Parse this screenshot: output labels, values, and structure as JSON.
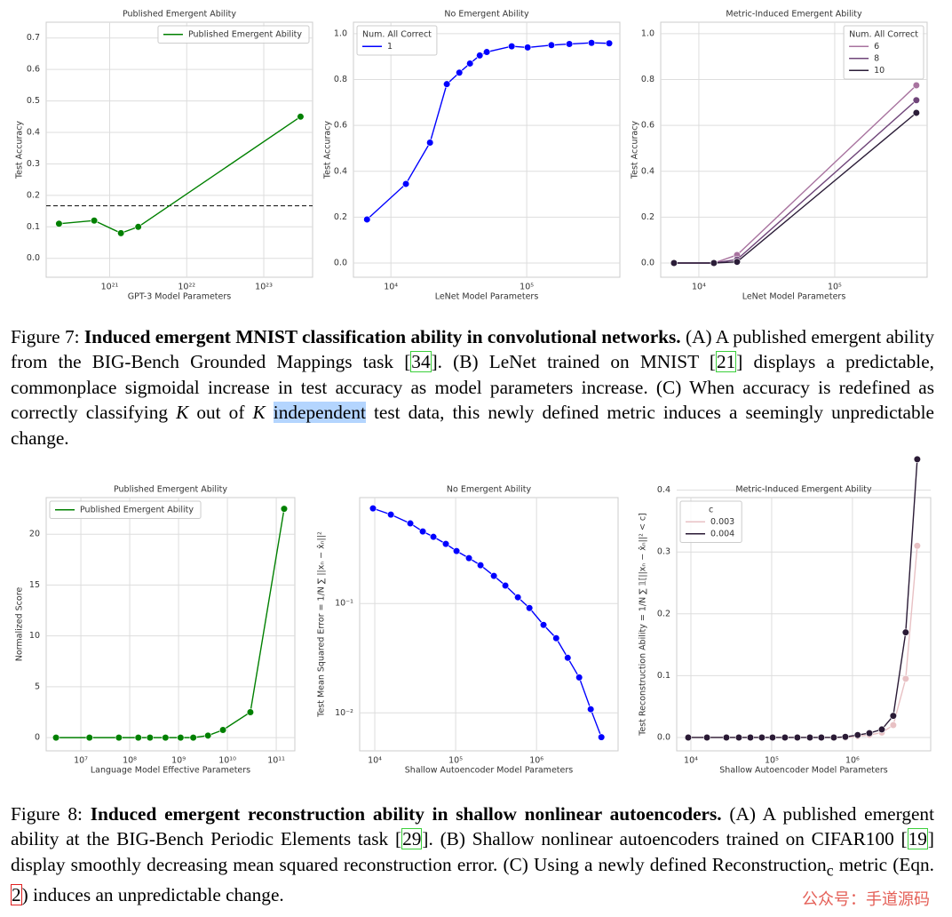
{
  "chart_data": [
    {
      "type": "line",
      "title": "Published Emergent Ability",
      "xlabel": "GPT-3 Model Parameters",
      "ylabel": "Test Accuracy",
      "xscale": "log",
      "xlim": [
        1.5e+20,
        4.3e+23
      ],
      "ylim": [
        -0.06,
        0.75
      ],
      "xticks": [
        {
          "value": 1e+21,
          "label": "10²¹"
        },
        {
          "value": 1e+22,
          "label": "10²²"
        },
        {
          "value": 1e+23,
          "label": "10²³"
        }
      ],
      "yticks": [
        {
          "value": 0,
          "label": "0.0"
        },
        0.1,
        0.2,
        0.3,
        0.4,
        0.5,
        0.6,
        0.7
      ],
      "x": [
        2.2e+20,
        6.3e+20,
        1.4e+21,
        2.35e+21,
        3e+23
      ],
      "series": [
        {
          "name": "Published Emergent Ability",
          "color": "#008000",
          "values": [
            0.11,
            0.12,
            0.08,
            0.1,
            0.45
          ]
        }
      ],
      "hline": 0.167,
      "hline_style": "dashed",
      "grid": true,
      "legend": "upper right"
    },
    {
      "type": "line",
      "title": "No Emergent Ability",
      "xlabel": "LeNet Model Parameters",
      "ylabel": "Test Accuracy",
      "xscale": "log",
      "xlim": [
        5300,
        485000
      ],
      "ylim": [
        -0.062,
        1.05
      ],
      "xticks": [
        {
          "value": 10000,
          "label": "10⁴"
        },
        {
          "value": 100000,
          "label": "10⁵"
        }
      ],
      "yticks": [
        {
          "value": 0,
          "label": "0.0"
        },
        0.2,
        0.4,
        0.6,
        0.8,
        {
          "value": 1,
          "label": "1.0"
        }
      ],
      "x": [
        6670,
        12900,
        19400,
        25800,
        31900,
        38200,
        45100,
        50800,
        77500,
        101600,
        152000,
        206000,
        300000,
        405000
      ],
      "series": [
        {
          "name": "1",
          "color": "#0000ff",
          "values": [
            0.19,
            0.345,
            0.525,
            0.78,
            0.83,
            0.87,
            0.905,
            0.92,
            0.945,
            0.94,
            0.95,
            0.955,
            0.96,
            0.958
          ]
        }
      ],
      "legend_title": "Num. All Correct",
      "grid": true,
      "legend": "upper left"
    },
    {
      "type": "line",
      "title": "Metric-Induced Emergent Ability",
      "xlabel": "LeNet Model Parameters",
      "ylabel": "Test Accuracy",
      "xscale": "log",
      "xlim": [
        5240,
        479000
      ],
      "ylim": [
        -0.062,
        1.05
      ],
      "xticks": [
        {
          "value": 10000,
          "label": "10⁴"
        },
        {
          "value": 100000,
          "label": "10⁵"
        }
      ],
      "yticks": [
        {
          "value": 0,
          "label": "0.0"
        },
        0.2,
        0.4,
        0.6,
        0.8,
        {
          "value": 1,
          "label": "1.0"
        }
      ],
      "x": [
        6560,
        12900,
        19100,
        399000
      ],
      "series": [
        {
          "name": "6",
          "color": "#a8739f",
          "values": [
            0,
            0,
            0.035,
            0.775
          ]
        },
        {
          "name": "8",
          "color": "#6f4579",
          "values": [
            0,
            0,
            0.015,
            0.71
          ]
        },
        {
          "name": "10",
          "color": "#2b1d38",
          "values": [
            0,
            0,
            0.005,
            0.655
          ]
        }
      ],
      "legend_title": "Num. All Correct",
      "grid": true,
      "legend": "upper right"
    },
    {
      "type": "line",
      "title": "Published Emergent Ability",
      "xlabel": "Language Model Effective Parameters",
      "ylabel": "Normalized Score",
      "xscale": "log",
      "xlim": [
        1950000.0,
        240000000000.0
      ],
      "ylim": [
        -1.3,
        23.6
      ],
      "xticks": [
        {
          "value": 10000000.0,
          "label": "10⁷"
        },
        {
          "value": 100000000.0,
          "label": "10⁸"
        },
        {
          "value": 1000000000.0,
          "label": "10⁹"
        },
        {
          "value": 10000000000.0,
          "label": "10¹⁰"
        },
        {
          "value": 100000000000.0,
          "label": "10¹¹"
        }
      ],
      "yticks": [
        0,
        5,
        10,
        15,
        20
      ],
      "x": [
        3100000.0,
        15000000.0,
        60000000.0,
        150000000.0,
        260000000.0,
        540000000.0,
        1100000000.0,
        2000000000.0,
        4000000000.0,
        8100000000.0,
        29500000000.0,
        145000000000.0
      ],
      "series": [
        {
          "name": "Published Emergent Ability",
          "color": "#008000",
          "values": [
            0,
            0,
            0,
            0,
            0,
            0,
            0,
            0,
            0.2,
            0.75,
            2.5,
            22.5
          ]
        }
      ],
      "grid": true,
      "legend": "upper left"
    },
    {
      "type": "line",
      "title": "No Emergent Ability",
      "xlabel": "Shallow Autoencoder Model Parameters",
      "ylabel": "Test Mean Squared Error  =  1/N ∑ ||xₙ − x̂ₙ||²",
      "xscale": "log",
      "yscale": "log",
      "xlim": [
        6500,
        10200000.0
      ],
      "ylim": [
        0.0045,
        0.93
      ],
      "xticks": [
        {
          "value": 10000,
          "label": "10⁴"
        },
        {
          "value": 100000,
          "label": "10⁵"
        },
        {
          "value": 1000000,
          "label": "10⁶"
        }
      ],
      "yticks": [
        {
          "value": 0.01,
          "label": "10⁻²"
        },
        {
          "value": 0.1,
          "label": "10⁻¹"
        }
      ],
      "x": [
        9500,
        15800,
        27500,
        39200,
        53100,
        75600,
        102500,
        146000,
        203000,
        297000,
        412000,
        588000,
        817000,
        1220000,
        1750000,
        2430000,
        3370000,
        4680000,
        6340000
      ],
      "series": [
        {
          "color": "#0000ff",
          "values": [
            0.741,
            0.65,
            0.54,
            0.456,
            0.407,
            0.351,
            0.302,
            0.26,
            0.224,
            0.179,
            0.146,
            0.114,
            0.091,
            0.0638,
            0.0482,
            0.0319,
            0.0211,
            0.0108,
            0.006
          ]
        }
      ],
      "grid": true
    },
    {
      "type": "line",
      "title": "Metric-Induced Emergent Ability",
      "xlabel": "Shallow Autoencoder Model Parameters",
      "ylabel": "Test Reconstruction Ability  =  1/N ∑ 𝟙[||xₙ − x̂ₙ||² < c]",
      "xscale": "log",
      "xlim": [
        6670,
        9300000.0
      ],
      "ylim": [
        -0.0216,
        0.388
      ],
      "xticks": [
        {
          "value": 10000,
          "label": "10⁴"
        },
        {
          "value": 100000,
          "label": "10⁵"
        },
        {
          "value": 1000000,
          "label": "10⁶"
        }
      ],
      "yticks": [
        {
          "value": 0,
          "label": "0.0"
        },
        0.1,
        0.2,
        0.3,
        0.4
      ],
      "x": [
        9270,
        15800,
        27500,
        39200,
        54500,
        75600,
        102500,
        146000,
        208000,
        297000,
        412000,
        588000,
        817000,
        1160000,
        1620000,
        2310000,
        3200000,
        4560000,
        6340000
      ],
      "series": [
        {
          "name": "0.003",
          "color": "#e8c1c4",
          "values": [
            0,
            0,
            0,
            0,
            0,
            0,
            0,
            0,
            0,
            0,
            0,
            0,
            0,
            0.002,
            0.004,
            0.008,
            0.02,
            0.095,
            0.31
          ]
        },
        {
          "name": "0.004",
          "color": "#2a1a35",
          "values": [
            0,
            0,
            0,
            0,
            0,
            0,
            0,
            0,
            0,
            0,
            0,
            0,
            0.001,
            0.004,
            0.007,
            0.013,
            0.035,
            0.17,
            0.45
          ]
        }
      ],
      "legend_title": "c",
      "grid": true,
      "legend": "upper left"
    }
  ],
  "captions": [
    {
      "label": "Figure 7:",
      "title": "Induced emergent MNIST classification ability in convolutional networks.",
      "segments": [
        {
          "t": " (A) A published emergent ability from the BIG-Bench Grounded Mappings task ["
        },
        {
          "t": "34",
          "s": "ref"
        },
        {
          "t": "]. (B) LeNet trained on MNIST ["
        },
        {
          "t": "21",
          "s": "ref"
        },
        {
          "t": "] displays a predictable, commonplace sigmoidal increase in test accuracy as model parameters increase. (C) When accuracy is redefined as correctly classifying "
        },
        {
          "t": "K",
          "s": "italic"
        },
        {
          "t": " out of "
        },
        {
          "t": "K",
          "s": "italic"
        },
        {
          "t": " "
        },
        {
          "t": "independent",
          "s": "highlight"
        },
        {
          "t": " test data, this newly defined metric induces a seemingly unpredictable change."
        }
      ]
    },
    {
      "label": "Figure 8:",
      "title": "Induced emergent reconstruction ability in shallow nonlinear autoencoders.",
      "segments": [
        {
          "t": " (A) A published emergent ability at the BIG-Bench Periodic Elements task ["
        },
        {
          "t": "29",
          "s": "ref"
        },
        {
          "t": "]. (B) Shallow nonlinear autoencoders trained on CIFAR100 ["
        },
        {
          "t": "19",
          "s": "ref"
        },
        {
          "t": "] display smoothly decreasing mean squared reconstruction error. (C) Using a newly defined Reconstruction"
        },
        {
          "t": "c",
          "s": "sub"
        },
        {
          "t": " metric (Eqn. "
        },
        {
          "t": "2",
          "s": "eqref"
        },
        {
          "t": ") induces an unpredictable change."
        }
      ]
    }
  ],
  "watermark": "公众号：手道源码"
}
